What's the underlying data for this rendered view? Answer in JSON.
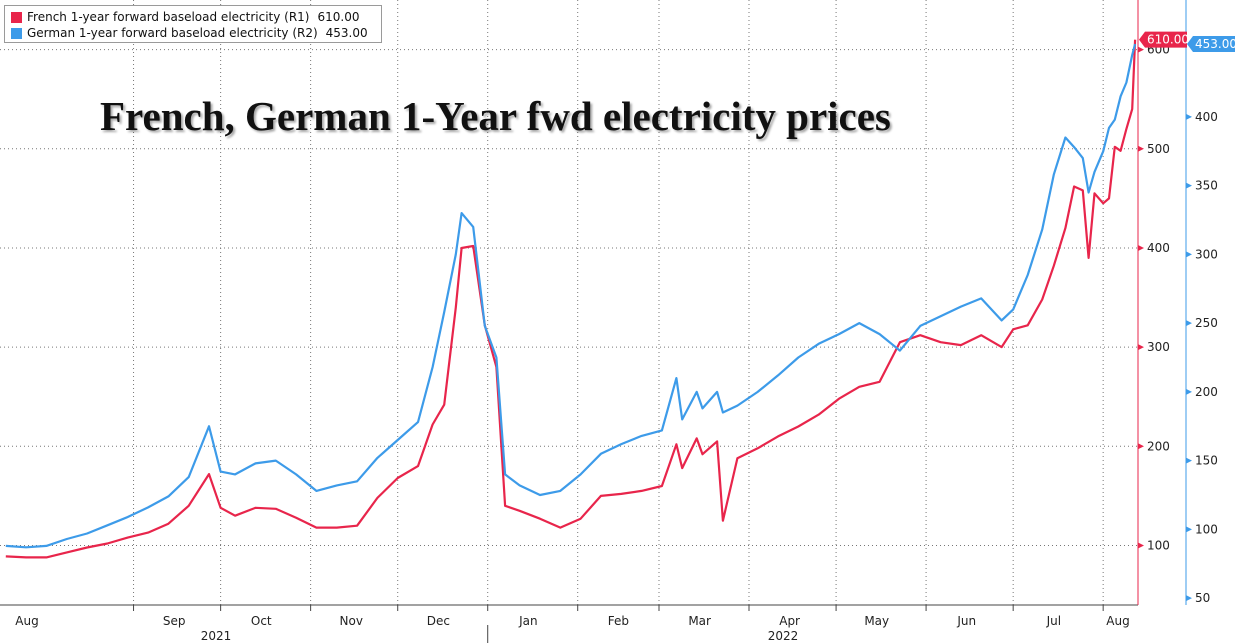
{
  "legend": {
    "series": [
      {
        "label": "French 1-year forward baseload electricity (R1)",
        "value": "610.00",
        "color": "#e8254b"
      },
      {
        "label": "German 1-year forward baseload electricity (R2)",
        "value": "453.00",
        "color": "#3d9be9"
      }
    ]
  },
  "chart_data": {
    "type": "line",
    "title": "French, German 1-Year fwd electricity  prices",
    "x_months": [
      "Aug",
      "Sep",
      "Oct",
      "Nov",
      "Dec",
      "Jan",
      "Feb",
      "Mar",
      "Apr",
      "May",
      "Jun",
      "Jul",
      "Aug"
    ],
    "x_years": [
      "2021",
      "2022"
    ],
    "x_range": [
      "2021-07-17",
      "2022-08-13"
    ],
    "axes": {
      "R1": {
        "label": "",
        "range": [
          40,
          650
        ],
        "ticks": [
          100,
          200,
          300,
          400,
          500,
          600
        ],
        "color": "#e8254b"
      },
      "R2": {
        "label": "",
        "range": [
          45,
          485
        ],
        "ticks": [
          50,
          100,
          150,
          200,
          250,
          300,
          350,
          400
        ],
        "color": "#3d9be9"
      }
    },
    "grid": true,
    "legend_position": "top-left",
    "series": [
      {
        "name": "French 1-year forward baseload electricity (R1)",
        "axis": "R1",
        "color": "#e8254b",
        "last_value": "610.00",
        "points": [
          [
            "2021-07-19",
            89
          ],
          [
            "2021-07-26",
            88
          ],
          [
            "2021-08-02",
            88
          ],
          [
            "2021-08-09",
            93
          ],
          [
            "2021-08-16",
            98
          ],
          [
            "2021-08-23",
            102
          ],
          [
            "2021-08-30",
            108
          ],
          [
            "2021-09-06",
            113
          ],
          [
            "2021-09-13",
            122
          ],
          [
            "2021-09-20",
            140
          ],
          [
            "2021-09-27",
            172
          ],
          [
            "2021-10-01",
            138
          ],
          [
            "2021-10-06",
            130
          ],
          [
            "2021-10-13",
            138
          ],
          [
            "2021-10-20",
            137
          ],
          [
            "2021-10-27",
            128
          ],
          [
            "2021-11-03",
            118
          ],
          [
            "2021-11-10",
            118
          ],
          [
            "2021-11-17",
            120
          ],
          [
            "2021-11-24",
            148
          ],
          [
            "2021-12-01",
            168
          ],
          [
            "2021-12-08",
            180
          ],
          [
            "2021-12-13",
            222
          ],
          [
            "2021-12-17",
            242
          ],
          [
            "2021-12-21",
            340
          ],
          [
            "2021-12-23",
            400
          ],
          [
            "2021-12-27",
            402
          ],
          [
            "2021-12-31",
            322
          ],
          [
            "2022-01-04",
            280
          ],
          [
            "2022-01-07",
            140
          ],
          [
            "2022-01-12",
            135
          ],
          [
            "2022-01-19",
            127
          ],
          [
            "2022-01-26",
            118
          ],
          [
            "2022-02-02",
            127
          ],
          [
            "2022-02-09",
            150
          ],
          [
            "2022-02-16",
            152
          ],
          [
            "2022-02-23",
            155
          ],
          [
            "2022-03-02",
            160
          ],
          [
            "2022-03-07",
            202
          ],
          [
            "2022-03-09",
            178
          ],
          [
            "2022-03-14",
            208
          ],
          [
            "2022-03-16",
            192
          ],
          [
            "2022-03-21",
            205
          ],
          [
            "2022-03-23",
            125
          ],
          [
            "2022-03-28",
            188
          ],
          [
            "2022-04-04",
            198
          ],
          [
            "2022-04-11",
            210
          ],
          [
            "2022-04-18",
            220
          ],
          [
            "2022-04-25",
            232
          ],
          [
            "2022-05-02",
            248
          ],
          [
            "2022-05-09",
            260
          ],
          [
            "2022-05-16",
            265
          ],
          [
            "2022-05-23",
            305
          ],
          [
            "2022-05-30",
            312
          ],
          [
            "2022-06-06",
            305
          ],
          [
            "2022-06-13",
            302
          ],
          [
            "2022-06-20",
            312
          ],
          [
            "2022-06-27",
            300
          ],
          [
            "2022-07-01",
            318
          ],
          [
            "2022-07-06",
            322
          ],
          [
            "2022-07-11",
            348
          ],
          [
            "2022-07-15",
            382
          ],
          [
            "2022-07-19",
            420
          ],
          [
            "2022-07-22",
            462
          ],
          [
            "2022-07-25",
            458
          ],
          [
            "2022-07-27",
            390
          ],
          [
            "2022-07-29",
            455
          ],
          [
            "2022-08-01",
            445
          ],
          [
            "2022-08-03",
            450
          ],
          [
            "2022-08-05",
            502
          ],
          [
            "2022-08-07",
            498
          ],
          [
            "2022-08-09",
            520
          ],
          [
            "2022-08-11",
            540
          ],
          [
            "2022-08-12",
            610
          ]
        ]
      },
      {
        "name": "German 1-year forward baseload electricity (R2)",
        "axis": "R2",
        "color": "#3d9be9",
        "last_value": "453.00",
        "points": [
          [
            "2021-07-19",
            88
          ],
          [
            "2021-07-26",
            87
          ],
          [
            "2021-08-02",
            88
          ],
          [
            "2021-08-09",
            93
          ],
          [
            "2021-08-16",
            97
          ],
          [
            "2021-08-23",
            103
          ],
          [
            "2021-08-30",
            109
          ],
          [
            "2021-09-06",
            116
          ],
          [
            "2021-09-13",
            124
          ],
          [
            "2021-09-20",
            138
          ],
          [
            "2021-09-27",
            175
          ],
          [
            "2021-10-01",
            142
          ],
          [
            "2021-10-06",
            140
          ],
          [
            "2021-10-13",
            148
          ],
          [
            "2021-10-20",
            150
          ],
          [
            "2021-10-27",
            140
          ],
          [
            "2021-11-03",
            128
          ],
          [
            "2021-11-10",
            132
          ],
          [
            "2021-11-17",
            135
          ],
          [
            "2021-11-24",
            152
          ],
          [
            "2021-12-01",
            165
          ],
          [
            "2021-12-08",
            178
          ],
          [
            "2021-12-13",
            218
          ],
          [
            "2021-12-17",
            258
          ],
          [
            "2021-12-21",
            300
          ],
          [
            "2021-12-23",
            330
          ],
          [
            "2021-12-27",
            320
          ],
          [
            "2021-12-31",
            248
          ],
          [
            "2022-01-04",
            225
          ],
          [
            "2022-01-07",
            140
          ],
          [
            "2022-01-12",
            132
          ],
          [
            "2022-01-19",
            125
          ],
          [
            "2022-01-26",
            128
          ],
          [
            "2022-02-02",
            140
          ],
          [
            "2022-02-09",
            155
          ],
          [
            "2022-02-16",
            162
          ],
          [
            "2022-02-23",
            168
          ],
          [
            "2022-03-02",
            172
          ],
          [
            "2022-03-07",
            210
          ],
          [
            "2022-03-09",
            180
          ],
          [
            "2022-03-14",
            200
          ],
          [
            "2022-03-16",
            188
          ],
          [
            "2022-03-21",
            200
          ],
          [
            "2022-03-23",
            185
          ],
          [
            "2022-03-28",
            190
          ],
          [
            "2022-04-04",
            200
          ],
          [
            "2022-04-11",
            212
          ],
          [
            "2022-04-18",
            225
          ],
          [
            "2022-04-25",
            235
          ],
          [
            "2022-05-02",
            242
          ],
          [
            "2022-05-09",
            250
          ],
          [
            "2022-05-16",
            242
          ],
          [
            "2022-05-23",
            230
          ],
          [
            "2022-05-30",
            248
          ],
          [
            "2022-06-06",
            255
          ],
          [
            "2022-06-13",
            262
          ],
          [
            "2022-06-20",
            268
          ],
          [
            "2022-06-27",
            252
          ],
          [
            "2022-07-01",
            260
          ],
          [
            "2022-07-06",
            285
          ],
          [
            "2022-07-11",
            318
          ],
          [
            "2022-07-15",
            358
          ],
          [
            "2022-07-19",
            385
          ],
          [
            "2022-07-22",
            378
          ],
          [
            "2022-07-25",
            370
          ],
          [
            "2022-07-27",
            345
          ],
          [
            "2022-07-29",
            360
          ],
          [
            "2022-08-01",
            375
          ],
          [
            "2022-08-03",
            392
          ],
          [
            "2022-08-05",
            398
          ],
          [
            "2022-08-07",
            415
          ],
          [
            "2022-08-09",
            425
          ],
          [
            "2022-08-11",
            445
          ],
          [
            "2022-08-12",
            453
          ]
        ]
      }
    ]
  }
}
